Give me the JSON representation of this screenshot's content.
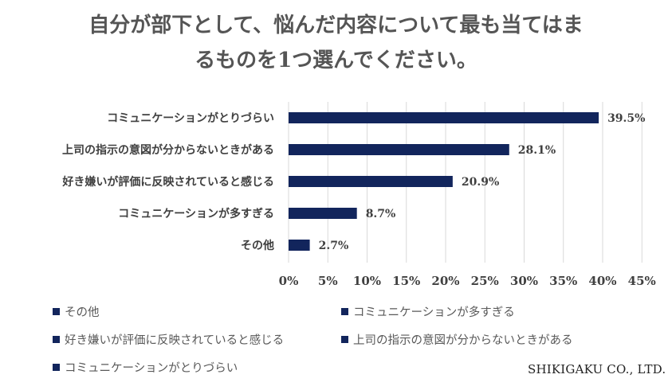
{
  "title": {
    "line1": "自分が部下として、悩んだ内容について最も当てはま",
    "line2": "るものを1つ選んでください。"
  },
  "colors": {
    "bar": "#12255c",
    "grid": "#d9d9d9",
    "text": "#404040"
  },
  "chart_data": {
    "type": "bar",
    "orientation": "horizontal",
    "categories": [
      "コミュニケーションがとりづらい",
      "上司の指示の意図が分からないときがある",
      "好き嫌いが評価に反映されていると感じる",
      "コミュニケーションが多すぎる",
      "その他"
    ],
    "values": [
      39.5,
      28.1,
      20.9,
      8.7,
      2.7
    ],
    "value_labels": [
      "39.5%",
      "28.1%",
      "20.9%",
      "8.7%",
      "2.7%"
    ],
    "xlim": [
      0,
      45
    ],
    "x_ticks": [
      0,
      5,
      10,
      15,
      20,
      25,
      30,
      35,
      40,
      45
    ],
    "x_tick_labels": [
      "0%",
      "5%",
      "10%",
      "15%",
      "20%",
      "25%",
      "30%",
      "35%",
      "40%",
      "45%"
    ],
    "grid": true,
    "legend_position": "bottom",
    "legend": [
      "その他",
      "コミュニケーションが多すぎる",
      "好き嫌いが評価に反映されていると感じる",
      "上司の指示の意図が分からないときがある",
      "コミュニケーションがとりづらい"
    ]
  },
  "footer": {
    "company": "SHIKIGAKU CO., LTD."
  }
}
